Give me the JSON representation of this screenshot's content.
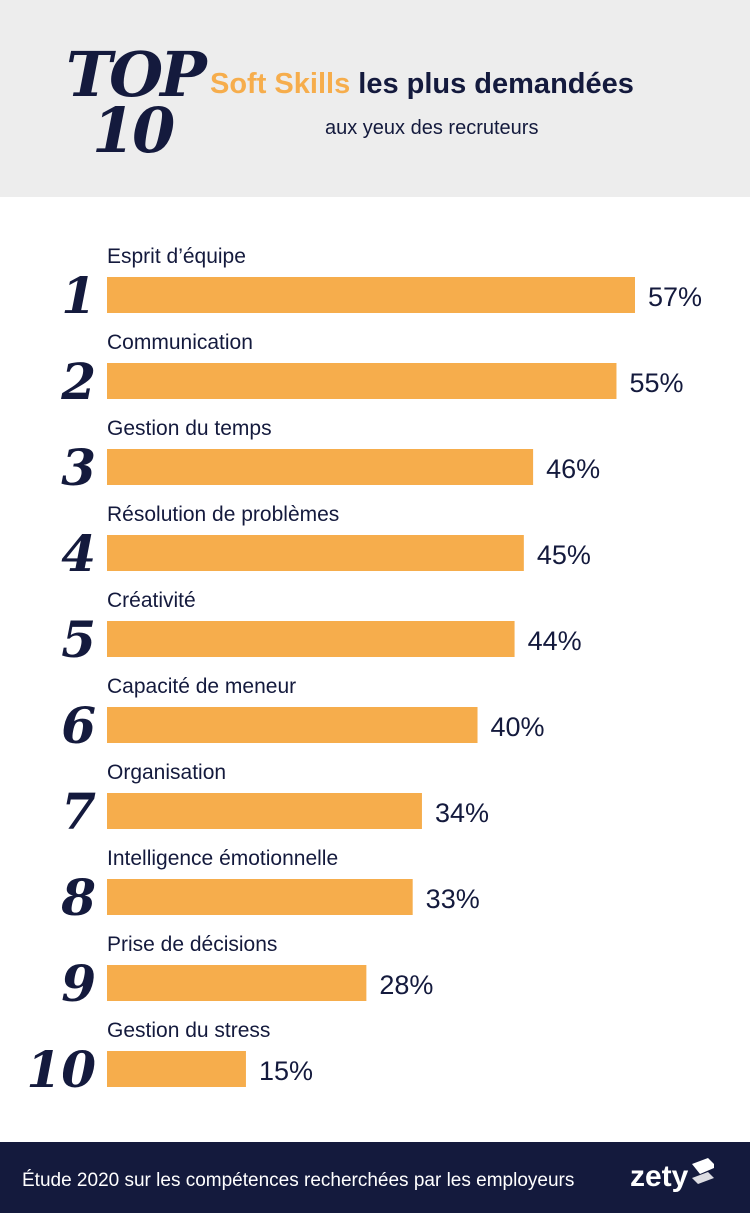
{
  "header": {
    "top_word": "TOP",
    "top_number": "10",
    "title_accent": "Soft Skills",
    "title_rest": "les plus demandées",
    "subtitle": "aux yeux des recruteurs"
  },
  "colors": {
    "bar": "#f6ad4c",
    "accent": "#f6ad4c",
    "navy": "#141a3d",
    "header_bg": "#ededed"
  },
  "chart_data": {
    "type": "bar",
    "orientation": "horizontal",
    "categories": [
      "Esprit d’équipe",
      "Communication",
      "Gestion du temps",
      "Résolution de problèmes",
      "Créativité",
      "Capacité de meneur",
      "Organisation",
      "Intelligence émotionnelle",
      "Prise de décisions",
      "Gestion du stress"
    ],
    "ranks": [
      "1",
      "2",
      "3",
      "4",
      "5",
      "6",
      "7",
      "8",
      "9",
      "10"
    ],
    "values": [
      57,
      55,
      46,
      45,
      44,
      40,
      34,
      33,
      28,
      15
    ],
    "value_labels": [
      "57%",
      "55%",
      "46%",
      "45%",
      "44%",
      "40%",
      "34%",
      "33%",
      "28%",
      "15%"
    ],
    "unit": "%",
    "grid": false,
    "legend": "none"
  },
  "footer": {
    "text": "Étude 2020 sur les compétences recherchées par les employeurs",
    "logo": "zety",
    "logo_icon": "zety-arrow-icon"
  }
}
